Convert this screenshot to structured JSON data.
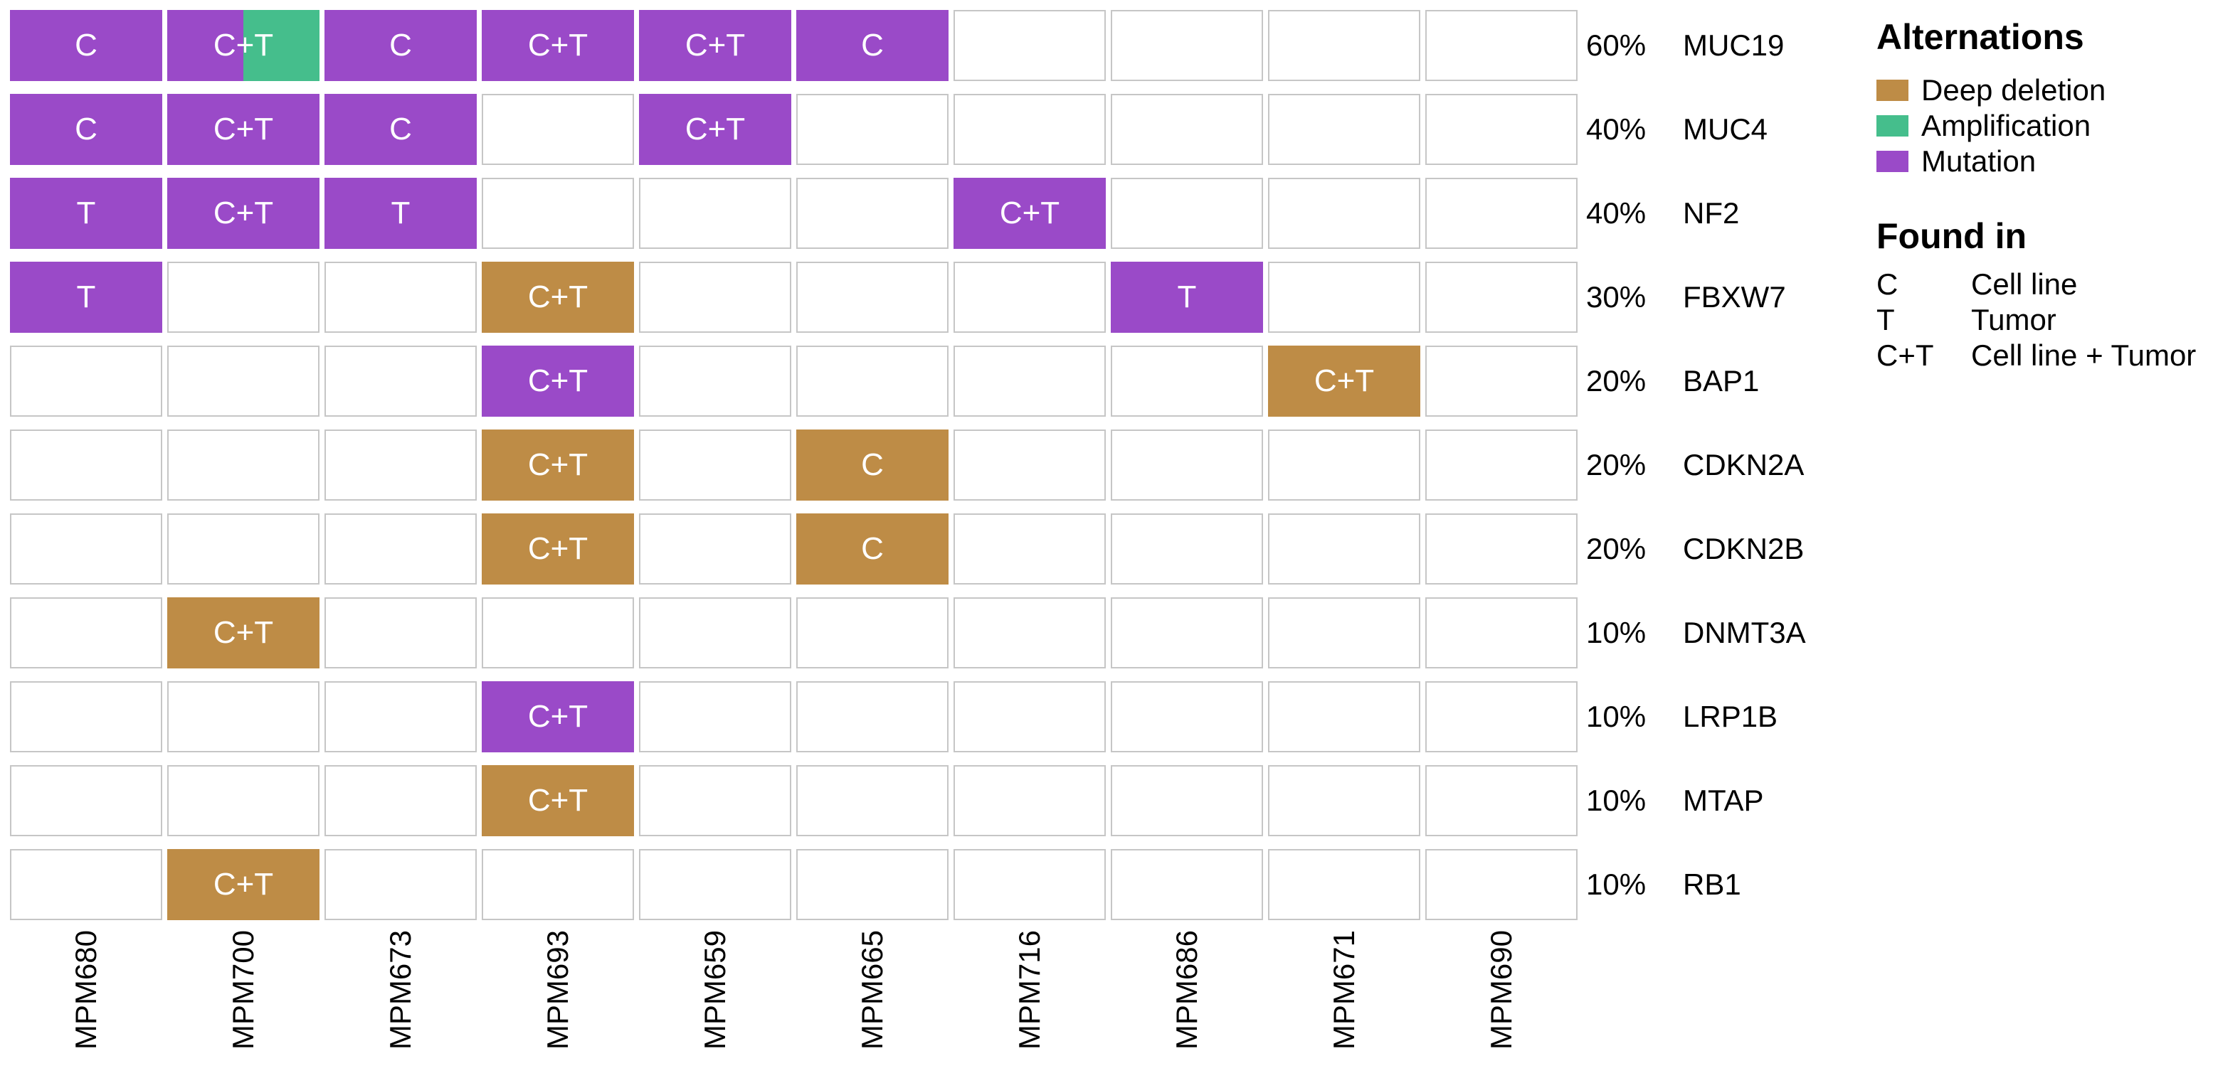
{
  "chart_data": {
    "type": "heatmap",
    "subtype": "oncoprint-mutation-matrix",
    "columns": [
      "MPM680",
      "MPM700",
      "MPM673",
      "MPM693",
      "MPM659",
      "MPM665",
      "MPM716",
      "MPM686",
      "MPM671",
      "MPM690"
    ],
    "rows": [
      {
        "gene": "MUC19",
        "percent": "60%",
        "cells": [
          {
            "found_in": "C",
            "alteration": "mutation"
          },
          {
            "found_in": "C+T",
            "alteration": "mutation",
            "alteration2": "amplification"
          },
          {
            "found_in": "C",
            "alteration": "mutation"
          },
          {
            "found_in": "C+T",
            "alteration": "mutation"
          },
          {
            "found_in": "C+T",
            "alteration": "mutation"
          },
          {
            "found_in": "C",
            "alteration": "mutation"
          },
          null,
          null,
          null,
          null
        ]
      },
      {
        "gene": "MUC4",
        "percent": "40%",
        "cells": [
          {
            "found_in": "C",
            "alteration": "mutation"
          },
          {
            "found_in": "C+T",
            "alteration": "mutation"
          },
          {
            "found_in": "C",
            "alteration": "mutation"
          },
          null,
          {
            "found_in": "C+T",
            "alteration": "mutation"
          },
          null,
          null,
          null,
          null,
          null
        ]
      },
      {
        "gene": "NF2",
        "percent": "40%",
        "cells": [
          {
            "found_in": "T",
            "alteration": "mutation"
          },
          {
            "found_in": "C+T",
            "alteration": "mutation"
          },
          {
            "found_in": "T",
            "alteration": "mutation"
          },
          null,
          null,
          null,
          {
            "found_in": "C+T",
            "alteration": "mutation"
          },
          null,
          null,
          null
        ]
      },
      {
        "gene": "FBXW7",
        "percent": "30%",
        "cells": [
          {
            "found_in": "T",
            "alteration": "mutation"
          },
          null,
          null,
          {
            "found_in": "C+T",
            "alteration": "deep_deletion"
          },
          null,
          null,
          null,
          {
            "found_in": "T",
            "alteration": "mutation"
          },
          null,
          null
        ]
      },
      {
        "gene": "BAP1",
        "percent": "20%",
        "cells": [
          null,
          null,
          null,
          {
            "found_in": "C+T",
            "alteration": "mutation"
          },
          null,
          null,
          null,
          null,
          {
            "found_in": "C+T",
            "alteration": "deep_deletion"
          },
          null
        ]
      },
      {
        "gene": "CDKN2A",
        "percent": "20%",
        "cells": [
          null,
          null,
          null,
          {
            "found_in": "C+T",
            "alteration": "deep_deletion"
          },
          null,
          {
            "found_in": "C",
            "alteration": "deep_deletion"
          },
          null,
          null,
          null,
          null
        ]
      },
      {
        "gene": "CDKN2B",
        "percent": "20%",
        "cells": [
          null,
          null,
          null,
          {
            "found_in": "C+T",
            "alteration": "deep_deletion"
          },
          null,
          {
            "found_in": "C",
            "alteration": "deep_deletion"
          },
          null,
          null,
          null,
          null
        ]
      },
      {
        "gene": "DNMT3A",
        "percent": "10%",
        "cells": [
          null,
          {
            "found_in": "C+T",
            "alteration": "deep_deletion"
          },
          null,
          null,
          null,
          null,
          null,
          null,
          null,
          null
        ]
      },
      {
        "gene": "LRP1B",
        "percent": "10%",
        "cells": [
          null,
          null,
          null,
          {
            "found_in": "C+T",
            "alteration": "mutation"
          },
          null,
          null,
          null,
          null,
          null,
          null
        ]
      },
      {
        "gene": "MTAP",
        "percent": "10%",
        "cells": [
          null,
          null,
          null,
          {
            "found_in": "C+T",
            "alteration": "deep_deletion"
          },
          null,
          null,
          null,
          null,
          null,
          null
        ]
      },
      {
        "gene": "RB1",
        "percent": "10%",
        "cells": [
          null,
          {
            "found_in": "C+T",
            "alteration": "deep_deletion"
          },
          null,
          null,
          null,
          null,
          null,
          null,
          null,
          null
        ]
      }
    ]
  },
  "legend": {
    "alterations_title": "Alternations",
    "alterations": [
      {
        "label": "Deep deletion",
        "color": "#BE8C46"
      },
      {
        "label": "Amplification",
        "color": "#45BE8C"
      },
      {
        "label": "Mutation",
        "color": "#9A4AC8"
      }
    ],
    "found_in_title": "Found in",
    "found_in": [
      {
        "code": "C",
        "label": "Cell line"
      },
      {
        "code": "T",
        "label": "Tumor"
      },
      {
        "code": "C+T",
        "label": "Cell line + Tumor"
      }
    ]
  },
  "colors": {
    "deep_deletion": "#BE8C46",
    "amplification": "#45BE8C",
    "mutation": "#9A4AC8",
    "empty_cell_border": "#C6C6C6",
    "empty_cell_fill": "#FFFFFF",
    "cell_text": "#FFFFFF",
    "label_text": "#000000"
  }
}
